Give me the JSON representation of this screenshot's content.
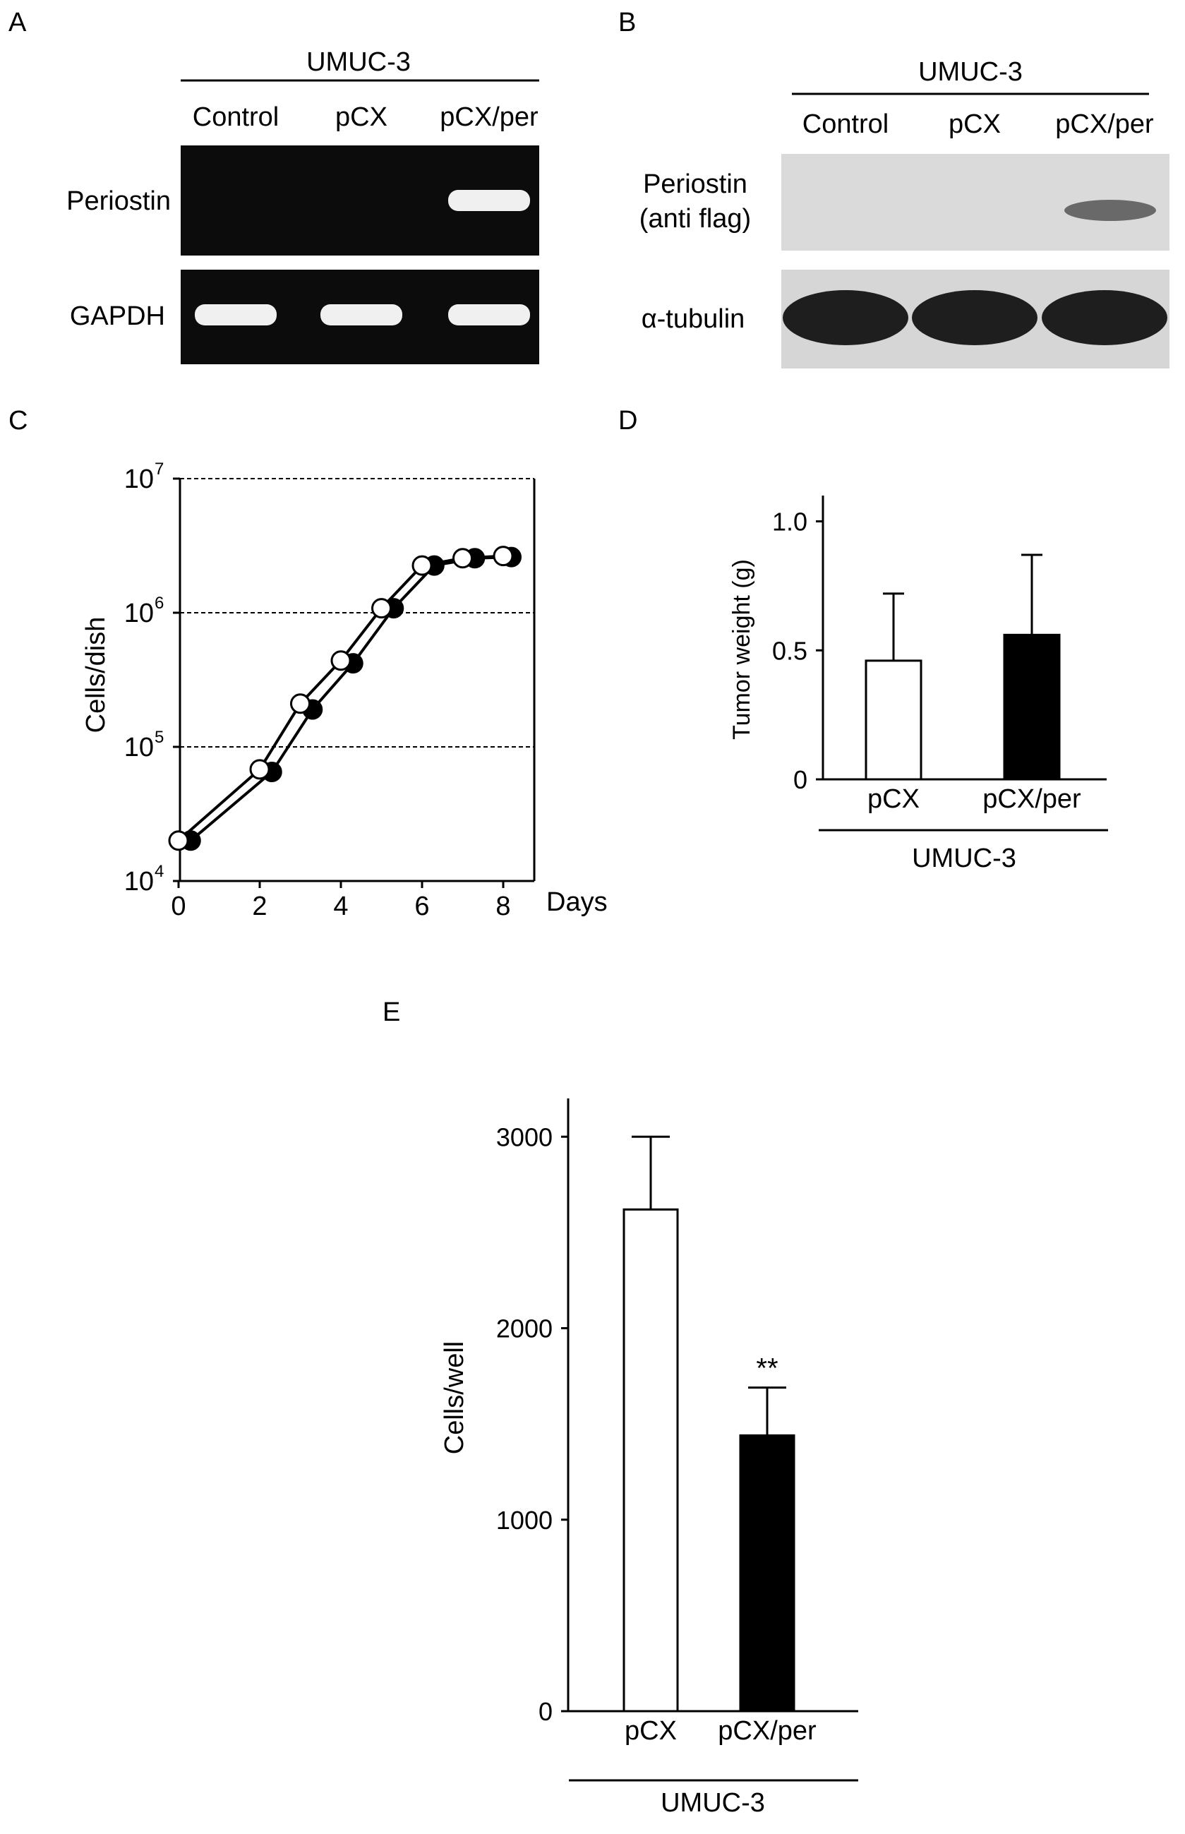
{
  "panels": {
    "A": {
      "letter": "A",
      "group_label": "UMUC-3",
      "lanes": [
        "Control",
        "pCX",
        "pCX/per"
      ],
      "rows": [
        {
          "label": "Periostin",
          "bands": [
            0,
            0,
            1
          ]
        },
        {
          "label": "GAPDH",
          "bands": [
            1,
            1,
            1
          ]
        }
      ]
    },
    "B": {
      "letter": "B",
      "group_label": "UMUC-3",
      "lanes": [
        "Control",
        "pCX",
        "pCX/per"
      ],
      "rows": [
        {
          "label_lines": [
            "Periostin",
            "(anti flag)"
          ],
          "bands": [
            0,
            0,
            0.6
          ]
        },
        {
          "label": "α-tubulin",
          "bands": [
            1,
            1,
            1
          ]
        }
      ]
    },
    "C": {
      "letter": "C"
    },
    "D": {
      "letter": "D"
    },
    "E": {
      "letter": "E"
    }
  },
  "colors": {
    "gel_background": "#0c0c0c",
    "gel_band": "#f0f0f0",
    "blot_background": "#dadada",
    "blot_band": "#1e1e1e",
    "open_marker": "#ffffff",
    "filled_marker": "#000000"
  },
  "chart_data": [
    {
      "panel": "C",
      "type": "line",
      "ylabel": "Cells/dish",
      "xlabel": "Days",
      "y_scale": "log",
      "ylim": [
        10000,
        10000000
      ],
      "xlim": [
        0,
        8
      ],
      "x_ticks": [
        0,
        2,
        4,
        6,
        8
      ],
      "y_ticks": [
        {
          "value": 10000,
          "base": "10",
          "exp": "4"
        },
        {
          "value": 100000,
          "base": "10",
          "exp": "5"
        },
        {
          "value": 1000000,
          "base": "10",
          "exp": "6"
        },
        {
          "value": 10000000,
          "base": "10",
          "exp": "7"
        }
      ],
      "grid": "dashed horizontal at each decade",
      "series": [
        {
          "marker": "open-circle",
          "x": [
            0,
            2,
            3,
            4,
            5,
            6,
            7,
            8
          ],
          "y": [
            20000,
            68000,
            210000,
            440000,
            1080000,
            2250000,
            2550000,
            2650000
          ]
        },
        {
          "marker": "filled-circle",
          "x": [
            0.3,
            2.3,
            3.3,
            4.3,
            5.3,
            6.3,
            7.3,
            8.2
          ],
          "y": [
            20000,
            65000,
            190000,
            420000,
            1080000,
            2250000,
            2550000,
            2600000
          ]
        }
      ]
    },
    {
      "panel": "D",
      "type": "bar",
      "ylabel": "Tumor weight (g)",
      "ylim": [
        0,
        1.1
      ],
      "y_ticks": [
        "0",
        "0.5",
        "1.0"
      ],
      "y_tick_values": [
        0,
        0.5,
        1.0
      ],
      "categories": [
        "pCX",
        "pCX/per"
      ],
      "values": [
        0.46,
        0.56
      ],
      "errors": [
        0.26,
        0.31
      ],
      "fills": [
        "#ffffff",
        "#000000"
      ],
      "group_label": "UMUC-3"
    },
    {
      "panel": "E",
      "type": "bar",
      "ylabel": "Cells/well",
      "ylim": [
        0,
        3200
      ],
      "y_ticks": [
        "0",
        "1000",
        "2000",
        "3000"
      ],
      "y_tick_values": [
        0,
        1000,
        2000,
        3000
      ],
      "categories": [
        "pCX",
        "pCX/per"
      ],
      "values": [
        2620,
        1440
      ],
      "errors": [
        380,
        250
      ],
      "fills": [
        "#ffffff",
        "#000000"
      ],
      "annotations": [
        "",
        "**"
      ],
      "group_label": "UMUC-3"
    }
  ]
}
